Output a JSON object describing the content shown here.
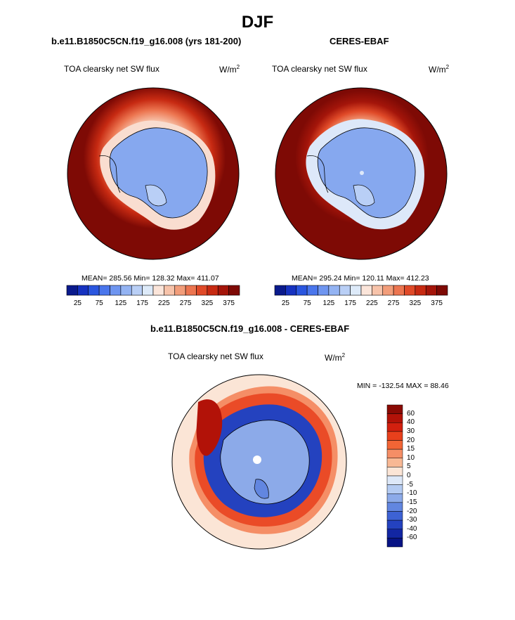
{
  "figure": {
    "title": "DJF"
  },
  "panels": [
    {
      "case": "b.e11.B1850C5CN.f19_g16.008 (yrs 181-200)",
      "variable": "TOA clearsky net SW flux",
      "units": "W/m",
      "units_exp": "2",
      "stats": {
        "mean": "285.56",
        "min": "128.32",
        "max": "411.07"
      },
      "stats_text": "MEAN= 285.56  Min= 128.32  Max= 411.07"
    },
    {
      "case": "CERES-EBAF",
      "variable": "TOA clearsky net SW flux",
      "units": "W/m",
      "units_exp": "2",
      "stats": {
        "mean": "295.24",
        "min": "120.11",
        "max": "412.23"
      },
      "stats_text": "MEAN= 295.24  Min= 120.11  Max= 412.23"
    },
    {
      "case": "b.e11.B1850C5CN.f19_g16.008 - CERES-EBAF",
      "variable": "TOA clearsky net SW flux",
      "units": "W/m",
      "units_exp": "2",
      "stats": {
        "min": "-132.54",
        "max": "88.46"
      },
      "stats_text": "MIN = -132.54 MAX =  88.46"
    }
  ],
  "colorbar_abs": {
    "levels": [
      "25",
      "75",
      "125",
      "175",
      "225",
      "275",
      "325",
      "375"
    ],
    "colors": [
      "#0a1a8c",
      "#1632c0",
      "#2a56df",
      "#4a76ec",
      "#6e95f0",
      "#93b3f3",
      "#b9cff6",
      "#ddeaf9",
      "#fbe5da",
      "#f7c3aa",
      "#f29d7a",
      "#ec7550",
      "#e04a28",
      "#c72a12",
      "#a4150a",
      "#7e0a05"
    ]
  },
  "colorbar_diff": {
    "levels": [
      "60",
      "40",
      "30",
      "20",
      "15",
      "10",
      "5",
      "0",
      "-5",
      "-10",
      "-15",
      "-20",
      "-30",
      "-40",
      "-60"
    ],
    "colors": [
      "#8a0a04",
      "#b21208",
      "#d2200f",
      "#e8401c",
      "#f26535",
      "#f58e66",
      "#f8b894",
      "#fbe5d6",
      "#dde8f8",
      "#b4cbf2",
      "#8caae9",
      "#6286e0",
      "#3d62d4",
      "#2442bf",
      "#1226a3",
      "#071384"
    ]
  }
}
